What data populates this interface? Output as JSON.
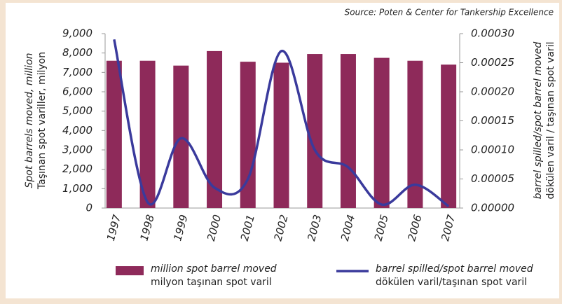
{
  "chart_data": {
    "type": "bar_line",
    "source": "Source: Poten & Center for Tankership Excellence",
    "y_label": "Spot barrels moved, million",
    "y_label_2": "Taşınan spot variller, milyon",
    "y2_label": "barrel spilled/spot barrel moved",
    "y2_label_2": "dökülen varil / taşınan spot varil",
    "categories": [
      "1997",
      "1998",
      "1999",
      "2000",
      "2001",
      "2002",
      "2003",
      "2004",
      "2005",
      "2006",
      "2007"
    ],
    "series": [
      {
        "name": "million spot barrel moved",
        "name_2": "milyon taşınan spot varil",
        "color": "#8e2a5a",
        "type": "bar",
        "values": [
          7600,
          7600,
          7350,
          8100,
          7550,
          7500,
          7950,
          7950,
          7750,
          7600,
          7400
        ]
      },
      {
        "name": "barrel spilled/spot barrel moved",
        "name_2": "dökülen varil/taşınan spot varil",
        "color": "#3a3a9c",
        "type": "line",
        "axis": "y2",
        "values": [
          0.00029,
          1e-05,
          0.00012,
          3.5e-05,
          5e-05,
          0.00027,
          0.0001,
          7e-05,
          6e-06,
          4e-05,
          3e-06
        ]
      }
    ],
    "ylim": [
      0,
      9000
    ],
    "yticks": [
      0,
      {
        "value": 1000,
        "label": "1,000"
      },
      {
        "value": 2000,
        "label": "2,000"
      },
      {
        "value": 3000,
        "label": "3,000"
      },
      {
        "value": 4000,
        "label": "4,000"
      },
      {
        "value": 5000,
        "label": "5,000"
      },
      {
        "value": 6000,
        "label": "6,000"
      },
      {
        "value": 7000,
        "label": "7,000"
      },
      {
        "value": 8000,
        "label": "8,000"
      },
      {
        "value": 9000,
        "label": "9,000"
      }
    ],
    "y2lim": [
      0,
      0.0003
    ],
    "y2ticks": [
      {
        "value": 0,
        "label": "0.00000"
      },
      {
        "value": 5e-05,
        "label": "0.00005"
      },
      {
        "value": 0.0001,
        "label": "0.00010"
      },
      {
        "value": 0.00015,
        "label": "0.00015"
      },
      {
        "value": 0.0002,
        "label": "0.00020"
      },
      {
        "value": 0.00025,
        "label": "0.00025"
      },
      {
        "value": 0.0003,
        "label": "0.00030"
      }
    ]
  }
}
